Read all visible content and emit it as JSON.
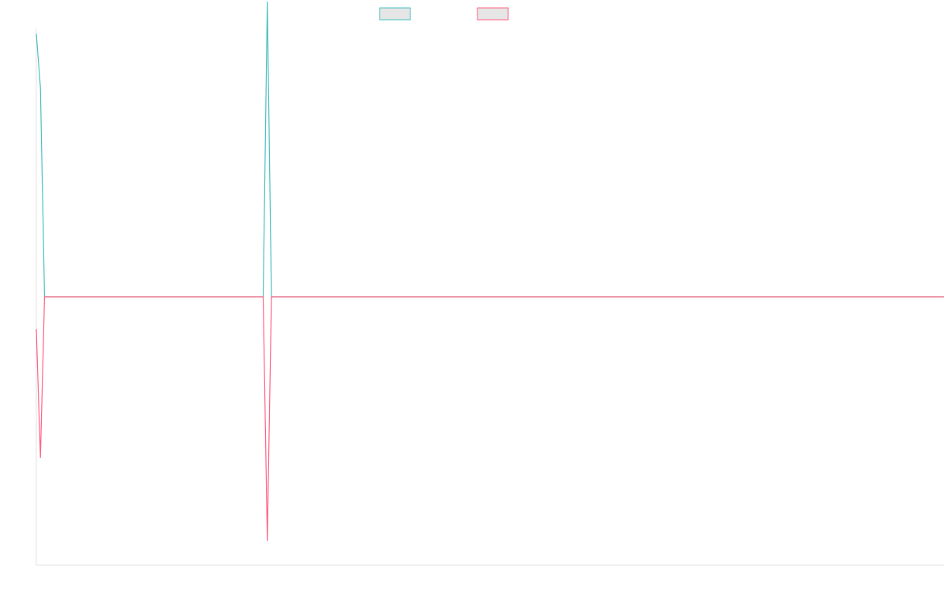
{
  "chart_data": {
    "type": "line",
    "title": "",
    "xlabel": "",
    "ylabel": "",
    "x": [
      0,
      1,
      2,
      54,
      55,
      56,
      57,
      220
    ],
    "xlim": [
      0,
      220
    ],
    "ylim": [
      -1,
      1
    ],
    "grid": false,
    "legend_position": "top-center",
    "series": [
      {
        "color": "#4bc0c0",
        "fill": "#e6e6e6",
        "values": [
          0.98,
          0.78,
          0.0,
          0.0,
          0.0,
          1.1,
          0.0,
          0.0
        ]
      },
      {
        "color": "#ff6384",
        "fill": "#e6e6e6",
        "values": [
          -0.12,
          -0.6,
          0.0,
          0.0,
          0.0,
          -0.91,
          0.0,
          0.0
        ]
      }
    ]
  }
}
